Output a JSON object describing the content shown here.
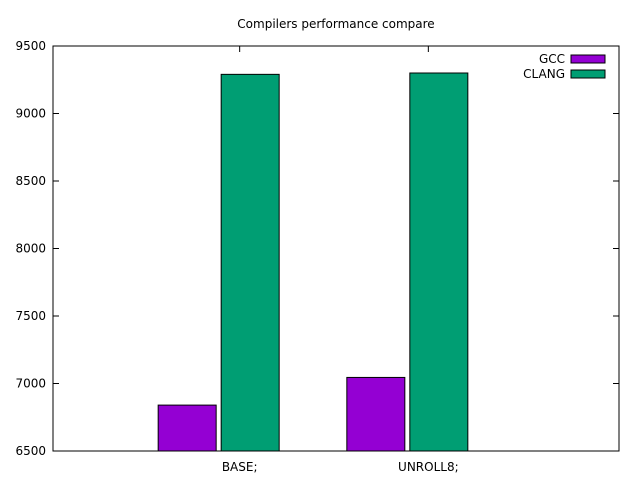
{
  "chart_data": {
    "type": "bar",
    "title": "Compilers performance compare",
    "xlabel": "",
    "ylabel": "",
    "categories": [
      "BASE;",
      "UNROLL8;"
    ],
    "series": [
      {
        "name": "GCC",
        "values": [
          6840,
          7045
        ],
        "color": "#9400d3"
      },
      {
        "name": "CLANG",
        "values": [
          9290,
          9300
        ],
        "color": "#009e73"
      }
    ],
    "ylim": [
      6500,
      9500
    ],
    "yticks": [
      6500,
      7000,
      7500,
      8000,
      8500,
      9000,
      9500
    ],
    "grid": false,
    "legend_position": "top-right"
  }
}
